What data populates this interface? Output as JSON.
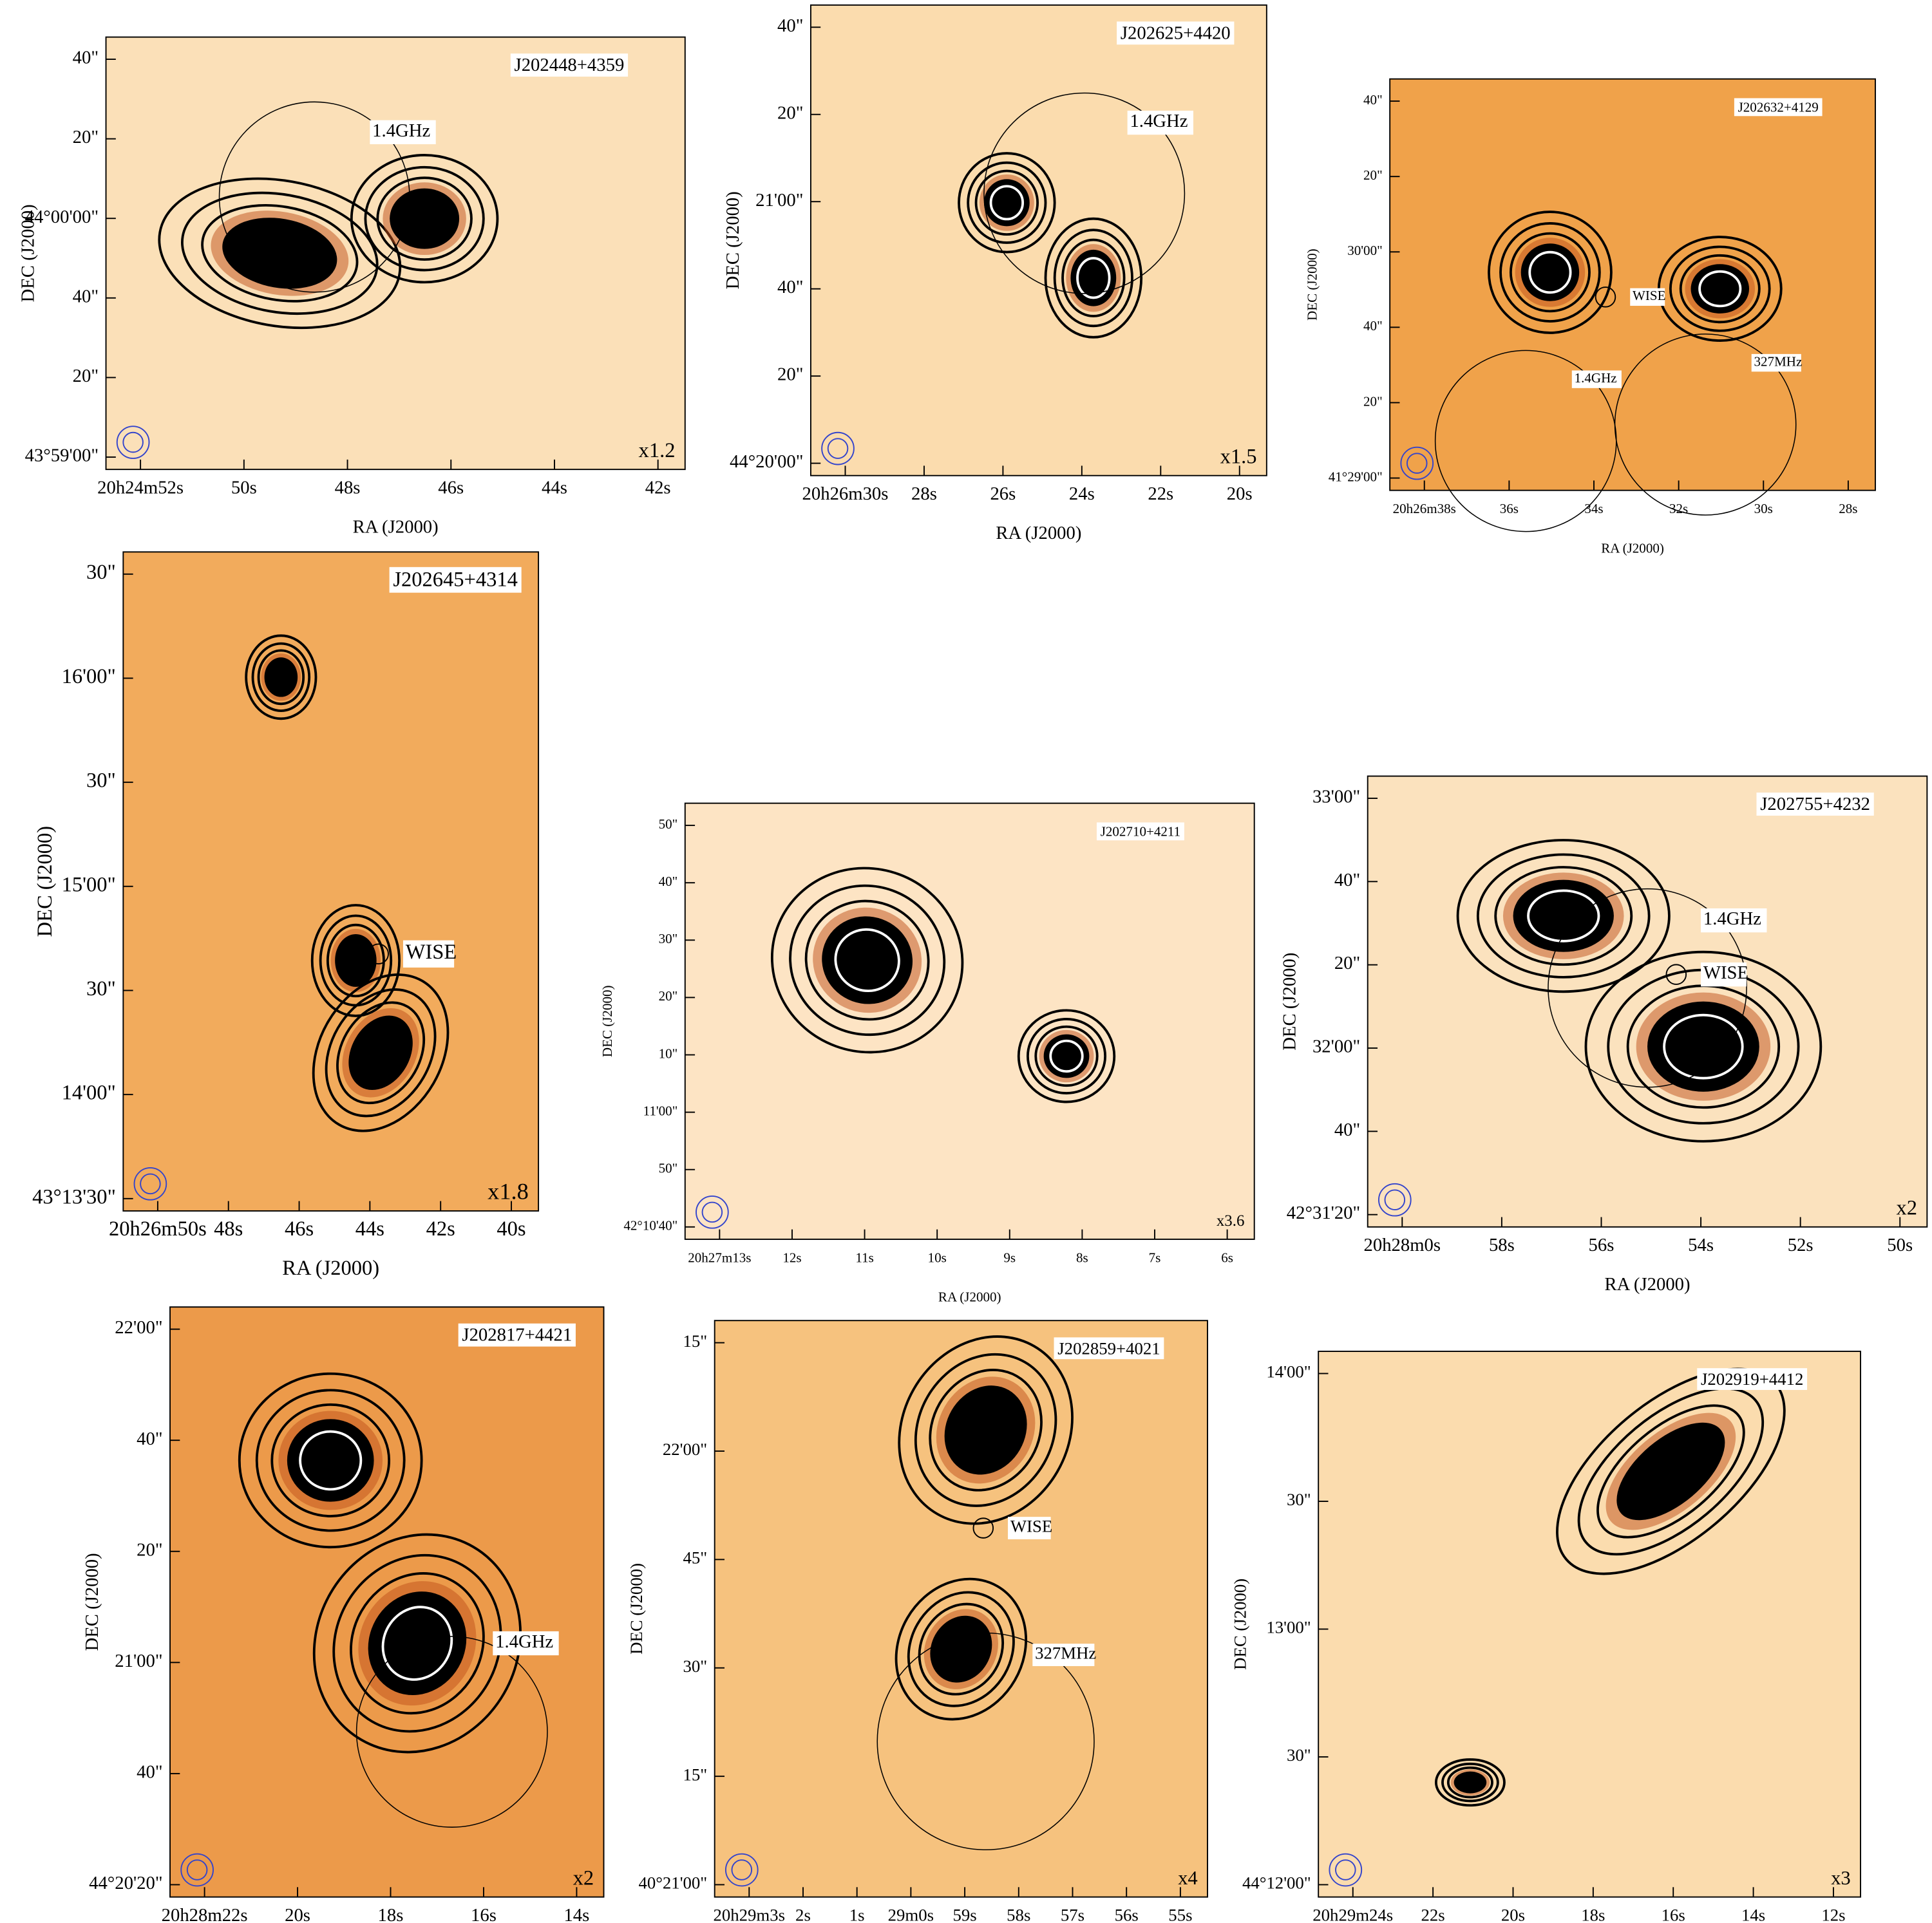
{
  "panels": [
    {
      "title": "J202448+4359",
      "yticks": [
        "40\"",
        "20\"",
        "44°00'00\"",
        "40\"",
        "20\"",
        "43°59'00\""
      ],
      "xticks": [
        "20h24m52s",
        "50s",
        "48s",
        "46s",
        "44s",
        "42s"
      ],
      "y_label": "DEC (J2000)",
      "x_label": "RA (J2000)",
      "scale": "x1.2",
      "annotations": [
        "1.4GHz"
      ]
    },
    {
      "title": "J202625+4420",
      "yticks": [
        "40\"",
        "20\"",
        "21'00\"",
        "40\"",
        "20\"",
        "44°20'00\""
      ],
      "xticks": [
        "20h26m30s",
        "28s",
        "26s",
        "24s",
        "22s",
        "20s"
      ],
      "y_label": "DEC (J2000)",
      "x_label": "RA (J2000)",
      "scale": "x1.5",
      "annotations": [
        "1.4GHz"
      ]
    },
    {
      "title": "J202632+4129",
      "yticks": [
        "40\"",
        "20\"",
        "30'00\"",
        "40\"",
        "20\"",
        "41°29'00\""
      ],
      "xticks": [
        "20h26m38s",
        "36s",
        "34s",
        "32s",
        "30s",
        "28s"
      ],
      "y_label": "DEC (J2000)",
      "x_label": "RA (J2000)",
      "annotations": [
        "WISE",
        "1.4GHz",
        "327MHz"
      ]
    },
    {
      "title": "J202645+4314",
      "yticks": [
        "30\"",
        "16'00\"",
        "30\"",
        "15'00\"",
        "30\"",
        "14'00\"",
        "43°13'30\""
      ],
      "xticks": [
        "20h26m50s",
        "48s",
        "46s",
        "44s",
        "42s",
        "40s"
      ],
      "y_label": "DEC (J2000)",
      "x_label": "RA (J2000)",
      "scale": "x1.8",
      "annotations": [
        "WISE"
      ]
    },
    {
      "title": "J202710+4211",
      "yticks": [
        "50\"",
        "40\"",
        "30\"",
        "20\"",
        "10\"",
        "11'00\"",
        "50\"",
        "42°10'40\""
      ],
      "xticks": [
        "20h27m13s",
        "12s",
        "11s",
        "10s",
        "9s",
        "8s",
        "7s",
        "6s"
      ],
      "y_label": "DEC (J2000)",
      "x_label": "RA (J2000)",
      "scale": "x3.6",
      "annotations": []
    },
    {
      "title": "J202755+4232",
      "yticks": [
        "33'00\"",
        "40\"",
        "20\"",
        "32'00\"",
        "40\"",
        "42°31'20\""
      ],
      "xticks": [
        "20h28m0s",
        "58s",
        "56s",
        "54s",
        "52s",
        "50s"
      ],
      "y_label": "DEC (J2000)",
      "x_label": "RA (J2000)",
      "scale": "x2",
      "annotations": [
        "1.4GHz",
        "WISE"
      ]
    },
    {
      "title": "J202817+4421",
      "yticks": [
        "22'00\"",
        "40\"",
        "20\"",
        "21'00\"",
        "40\"",
        "44°20'20\""
      ],
      "xticks": [
        "20h28m22s",
        "20s",
        "18s",
        "16s",
        "14s"
      ],
      "y_label": "DEC (J2000)",
      "x_label": "RA (J2000)",
      "scale": "x2",
      "annotations": [
        "1.4GHz"
      ]
    },
    {
      "title": "J202859+4021",
      "yticks": [
        "15\"",
        "22'00\"",
        "45\"",
        "30\"",
        "15\"",
        "40°21'00\""
      ],
      "xticks": [
        "20h29m3s",
        "2s",
        "1s",
        "29m0s",
        "59s",
        "58s",
        "57s",
        "56s",
        "55s"
      ],
      "y_label": "DEC (J2000)",
      "x_label": "RA (J2000)",
      "scale": "x4",
      "annotations": [
        "WISE",
        "327MHz"
      ]
    },
    {
      "title": "J202919+4412",
      "yticks": [
        "14'00\"",
        "30\"",
        "13'00\"",
        "30\"",
        "44°12'00\""
      ],
      "xticks": [
        "20h29m24s",
        "22s",
        "20s",
        "18s",
        "16s",
        "14s",
        "12s"
      ],
      "y_label": "DEC (J2000)",
      "x_label": "RA (J2000)",
      "scale": "x3",
      "annotations": []
    }
  ]
}
